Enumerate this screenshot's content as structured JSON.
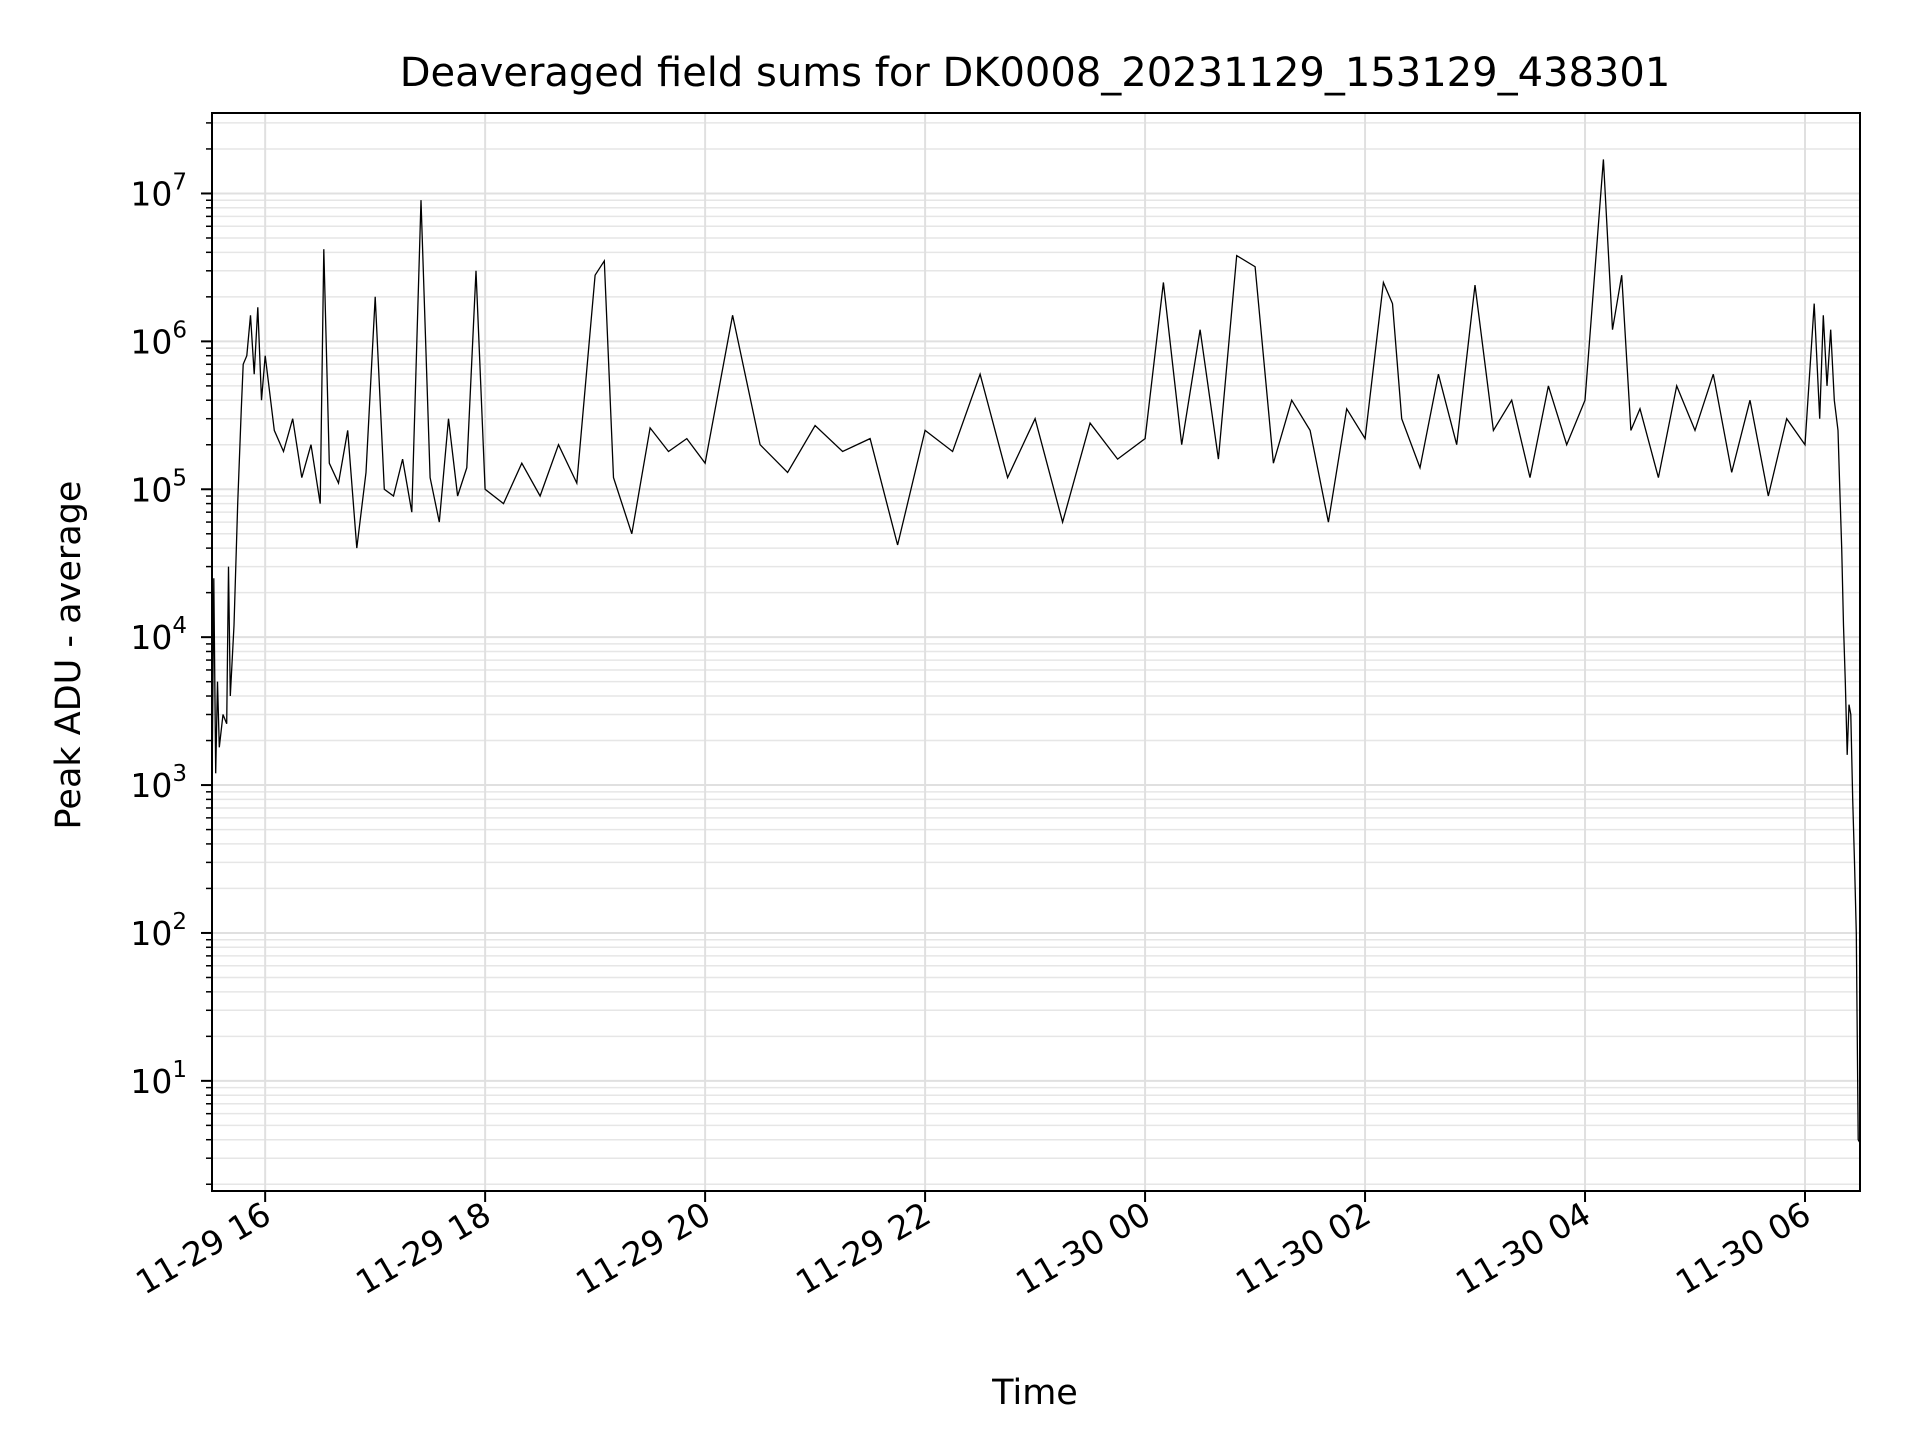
{
  "chart_data": {
    "type": "line",
    "title": "Deaveraged field sums for DK0008_20231129_153129_438301",
    "xlabel": "Time",
    "ylabel": "Peak ADU - average",
    "y_scale": "log",
    "grid": true,
    "x_range": [
      "2023-11-29 15:31",
      "2023-11-30 06:30"
    ],
    "ylim": [
      1.8,
      35000000
    ],
    "x_ticks": [
      {
        "t": "2023-11-29 16:00",
        "label": "11-29 16"
      },
      {
        "t": "2023-11-29 18:00",
        "label": "11-29 18"
      },
      {
        "t": "2023-11-29 20:00",
        "label": "11-29 20"
      },
      {
        "t": "2023-11-29 22:00",
        "label": "11-29 22"
      },
      {
        "t": "2023-11-30 00:00",
        "label": "11-30 00"
      },
      {
        "t": "2023-11-30 02:00",
        "label": "11-30 02"
      },
      {
        "t": "2023-11-30 04:00",
        "label": "11-30 04"
      },
      {
        "t": "2023-11-30 06:00",
        "label": "11-30 06"
      }
    ],
    "y_ticks": [
      {
        "value": 10,
        "base": "10",
        "exp": "1"
      },
      {
        "value": 100,
        "base": "10",
        "exp": "2"
      },
      {
        "value": 1000,
        "base": "10",
        "exp": "3"
      },
      {
        "value": 10000,
        "base": "10",
        "exp": "4"
      },
      {
        "value": 100000,
        "base": "10",
        "exp": "5"
      },
      {
        "value": 1000000,
        "base": "10",
        "exp": "6"
      },
      {
        "value": 10000000,
        "base": "10",
        "exp": "7"
      }
    ],
    "series": [
      {
        "color": "#000000",
        "points": [
          [
            "2023-11-29 15:31",
            900
          ],
          [
            "2023-11-29 15:32",
            25000
          ],
          [
            "2023-11-29 15:33",
            1200
          ],
          [
            "2023-11-29 15:34",
            5000
          ],
          [
            "2023-11-29 15:35",
            1800
          ],
          [
            "2023-11-29 15:37",
            3000
          ],
          [
            "2023-11-29 15:39",
            2600
          ],
          [
            "2023-11-29 15:40",
            30000
          ],
          [
            "2023-11-29 15:41",
            4000
          ],
          [
            "2023-11-29 15:43",
            12000
          ],
          [
            "2023-11-29 15:45",
            80000
          ],
          [
            "2023-11-29 15:47",
            350000
          ],
          [
            "2023-11-29 15:48",
            700000
          ],
          [
            "2023-11-29 15:50",
            800000
          ],
          [
            "2023-11-29 15:52",
            1500000
          ],
          [
            "2023-11-29 15:54",
            600000
          ],
          [
            "2023-11-29 15:56",
            1700000
          ],
          [
            "2023-11-29 15:58",
            400000
          ],
          [
            "2023-11-29 16:00",
            800000
          ],
          [
            "2023-11-29 16:05",
            250000
          ],
          [
            "2023-11-29 16:10",
            180000
          ],
          [
            "2023-11-29 16:15",
            300000
          ],
          [
            "2023-11-29 16:20",
            120000
          ],
          [
            "2023-11-29 16:25",
            200000
          ],
          [
            "2023-11-29 16:30",
            80000
          ],
          [
            "2023-11-29 16:32",
            4200000
          ],
          [
            "2023-11-29 16:35",
            150000
          ],
          [
            "2023-11-29 16:40",
            110000
          ],
          [
            "2023-11-29 16:45",
            250000
          ],
          [
            "2023-11-29 16:50",
            40000
          ],
          [
            "2023-11-29 16:55",
            130000
          ],
          [
            "2023-11-29 17:00",
            2000000
          ],
          [
            "2023-11-29 17:05",
            100000
          ],
          [
            "2023-11-29 17:10",
            90000
          ],
          [
            "2023-11-29 17:15",
            160000
          ],
          [
            "2023-11-29 17:20",
            70000
          ],
          [
            "2023-11-29 17:25",
            9000000
          ],
          [
            "2023-11-29 17:30",
            120000
          ],
          [
            "2023-11-29 17:35",
            60000
          ],
          [
            "2023-11-29 17:40",
            300000
          ],
          [
            "2023-11-29 17:45",
            90000
          ],
          [
            "2023-11-29 17:50",
            140000
          ],
          [
            "2023-11-29 17:55",
            3000000
          ],
          [
            "2023-11-29 18:00",
            100000
          ],
          [
            "2023-11-29 18:10",
            80000
          ],
          [
            "2023-11-29 18:20",
            150000
          ],
          [
            "2023-11-29 18:30",
            90000
          ],
          [
            "2023-11-29 18:40",
            200000
          ],
          [
            "2023-11-29 18:50",
            110000
          ],
          [
            "2023-11-29 19:00",
            2800000
          ],
          [
            "2023-11-29 19:05",
            3500000
          ],
          [
            "2023-11-29 19:10",
            120000
          ],
          [
            "2023-11-29 19:20",
            50000
          ],
          [
            "2023-11-29 19:30",
            260000
          ],
          [
            "2023-11-29 19:40",
            180000
          ],
          [
            "2023-11-29 19:50",
            220000
          ],
          [
            "2023-11-29 20:00",
            150000
          ],
          [
            "2023-11-29 20:15",
            1500000
          ],
          [
            "2023-11-29 20:30",
            200000
          ],
          [
            "2023-11-29 20:45",
            130000
          ],
          [
            "2023-11-29 21:00",
            270000
          ],
          [
            "2023-11-29 21:15",
            180000
          ],
          [
            "2023-11-29 21:30",
            220000
          ],
          [
            "2023-11-29 21:45",
            42000
          ],
          [
            "2023-11-29 22:00",
            250000
          ],
          [
            "2023-11-29 22:15",
            180000
          ],
          [
            "2023-11-29 22:30",
            600000
          ],
          [
            "2023-11-29 22:45",
            120000
          ],
          [
            "2023-11-29 23:00",
            300000
          ],
          [
            "2023-11-29 23:15",
            60000
          ],
          [
            "2023-11-29 23:30",
            280000
          ],
          [
            "2023-11-29 23:45",
            160000
          ],
          [
            "2023-11-30 00:00",
            220000
          ],
          [
            "2023-11-30 00:10",
            2500000
          ],
          [
            "2023-11-30 00:20",
            200000
          ],
          [
            "2023-11-30 00:30",
            1200000
          ],
          [
            "2023-11-30 00:40",
            160000
          ],
          [
            "2023-11-30 00:50",
            3800000
          ],
          [
            "2023-11-30 01:00",
            3200000
          ],
          [
            "2023-11-30 01:10",
            150000
          ],
          [
            "2023-11-30 01:20",
            400000
          ],
          [
            "2023-11-30 01:30",
            250000
          ],
          [
            "2023-11-30 01:40",
            60000
          ],
          [
            "2023-11-30 01:50",
            350000
          ],
          [
            "2023-11-30 02:00",
            220000
          ],
          [
            "2023-11-30 02:10",
            2500000
          ],
          [
            "2023-11-30 02:15",
            1800000
          ],
          [
            "2023-11-30 02:20",
            300000
          ],
          [
            "2023-11-30 02:30",
            140000
          ],
          [
            "2023-11-30 02:40",
            600000
          ],
          [
            "2023-11-30 02:50",
            200000
          ],
          [
            "2023-11-30 03:00",
            2400000
          ],
          [
            "2023-11-30 03:10",
            250000
          ],
          [
            "2023-11-30 03:20",
            400000
          ],
          [
            "2023-11-30 03:30",
            120000
          ],
          [
            "2023-11-30 03:40",
            500000
          ],
          [
            "2023-11-30 03:50",
            200000
          ],
          [
            "2023-11-30 04:00",
            400000
          ],
          [
            "2023-11-30 04:10",
            17000000
          ],
          [
            "2023-11-30 04:15",
            1200000
          ],
          [
            "2023-11-30 04:20",
            2800000
          ],
          [
            "2023-11-30 04:25",
            250000
          ],
          [
            "2023-11-30 04:30",
            350000
          ],
          [
            "2023-11-30 04:40",
            120000
          ],
          [
            "2023-11-30 04:50",
            500000
          ],
          [
            "2023-11-30 05:00",
            250000
          ],
          [
            "2023-11-30 05:10",
            600000
          ],
          [
            "2023-11-30 05:20",
            130000
          ],
          [
            "2023-11-30 05:30",
            400000
          ],
          [
            "2023-11-30 05:40",
            90000
          ],
          [
            "2023-11-30 05:50",
            300000
          ],
          [
            "2023-11-30 06:00",
            200000
          ],
          [
            "2023-11-30 06:05",
            1800000
          ],
          [
            "2023-11-30 06:08",
            300000
          ],
          [
            "2023-11-30 06:10",
            1500000
          ],
          [
            "2023-11-30 06:12",
            500000
          ],
          [
            "2023-11-30 06:14",
            1200000
          ],
          [
            "2023-11-30 06:16",
            400000
          ],
          [
            "2023-11-30 06:18",
            250000
          ],
          [
            "2023-11-30 06:19",
            100000
          ],
          [
            "2023-11-30 06:20",
            40000
          ],
          [
            "2023-11-30 06:21",
            12000
          ],
          [
            "2023-11-30 06:22",
            5000
          ],
          [
            "2023-11-30 06:23",
            1600
          ],
          [
            "2023-11-30 06:24",
            3500
          ],
          [
            "2023-11-30 06:25",
            3000
          ],
          [
            "2023-11-30 06:26",
            800
          ],
          [
            "2023-11-30 06:27",
            300
          ],
          [
            "2023-11-30 06:28",
            100
          ],
          [
            "2023-11-30 06:29",
            4
          ],
          [
            "2023-11-30 06:30",
            3.8
          ]
        ]
      }
    ]
  }
}
